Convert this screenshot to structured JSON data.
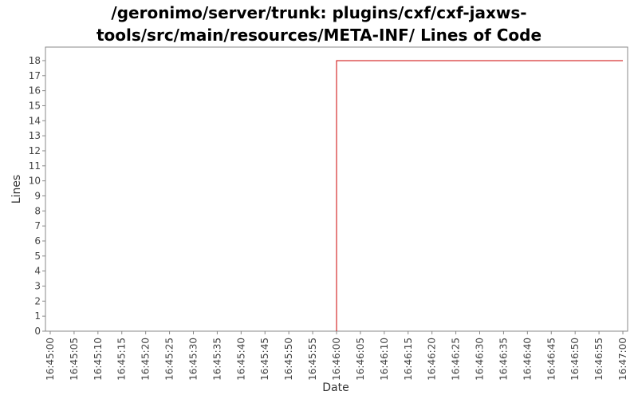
{
  "chart_data": {
    "type": "line",
    "title_lines": [
      "/geronimo/server/trunk: plugins/cxf/cxf-jaxws-",
      "tools/src/main/resources/META-INF/ Lines of Code"
    ],
    "xlabel": "Date",
    "ylabel": "Lines",
    "x_ticks": [
      "16:45:00",
      "16:45:05",
      "16:45:10",
      "16:45:15",
      "16:45:20",
      "16:45:25",
      "16:45:30",
      "16:45:35",
      "16:45:40",
      "16:45:45",
      "16:45:50",
      "16:45:55",
      "16:46:00",
      "16:46:05",
      "16:46:10",
      "16:46:15",
      "16:46:20",
      "16:46:25",
      "16:46:30",
      "16:46:35",
      "16:46:40",
      "16:46:45",
      "16:46:50",
      "16:46:55",
      "16:47:00"
    ],
    "y_ticks": [
      0,
      1,
      2,
      3,
      4,
      5,
      6,
      7,
      8,
      9,
      10,
      11,
      12,
      13,
      14,
      15,
      16,
      17,
      18
    ],
    "ylim": [
      0,
      18.9
    ],
    "xlim": [
      "16:44:59",
      "16:47:01"
    ],
    "grid": false,
    "series": [
      {
        "color": "#cc0000",
        "points": [
          {
            "x": "16:46:00",
            "y": 0
          },
          {
            "x": "16:46:00",
            "y": 18
          },
          {
            "x": "16:47:00",
            "y": 18
          }
        ]
      }
    ]
  }
}
